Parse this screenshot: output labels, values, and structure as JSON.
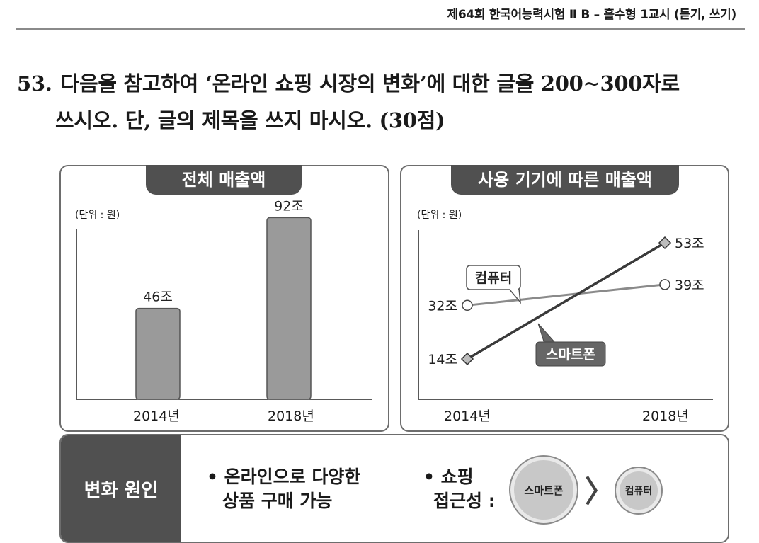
{
  "header": {
    "exam_title": "제64회 한국어능력시험 Ⅱ B – 홀수형 1교시 (듣기, 쓰기)"
  },
  "question": {
    "number": "53.",
    "line1": "다음을 참고하여 ‘온라인 쇼핑 시장의 변화’에 대한 글을 200∼300자로",
    "line2": "쓰시오. 단, 글의 제목을 쓰지 마시오. (30점)"
  },
  "chart_data": [
    {
      "type": "bar",
      "title": "전체 매출액",
      "unit_note": "(단위 : 원)",
      "categories": [
        "2014년",
        "2018년"
      ],
      "values": [
        46,
        92
      ],
      "data_labels": [
        "46조",
        "92조"
      ],
      "ylim": [
        0,
        100
      ],
      "bar_color": "#9a9a9a"
    },
    {
      "type": "line",
      "title": "사용 기기에 따른 매출액",
      "unit_note": "(단위 : 원)",
      "x": [
        "2014년",
        "2018년"
      ],
      "ylim": [
        0,
        60
      ],
      "series": [
        {
          "name": "컴퓨터",
          "values": [
            32,
            39
          ],
          "labels": [
            "32조",
            "39조"
          ],
          "marker": "circle",
          "color": "#8a8a8a"
        },
        {
          "name": "스마트폰",
          "values": [
            14,
            53
          ],
          "labels": [
            "14조",
            "53조"
          ],
          "marker": "diamond",
          "color": "#3a3a3a"
        }
      ]
    }
  ],
  "cause": {
    "label": "변화 원인",
    "bullet1_line1": "• 온라인으로 다양한",
    "bullet1_line2": "상품 구매 가능",
    "bullet2_line1": "• 쇼핑",
    "bullet2_line2": "접근성 :",
    "comparison_big": "스마트폰",
    "comparison_small": "컴퓨터",
    "comparison_symbol": "〉"
  },
  "colors": {
    "dark": "#505050",
    "bar": "#9a9a9a",
    "border": "#6d6d6d"
  }
}
